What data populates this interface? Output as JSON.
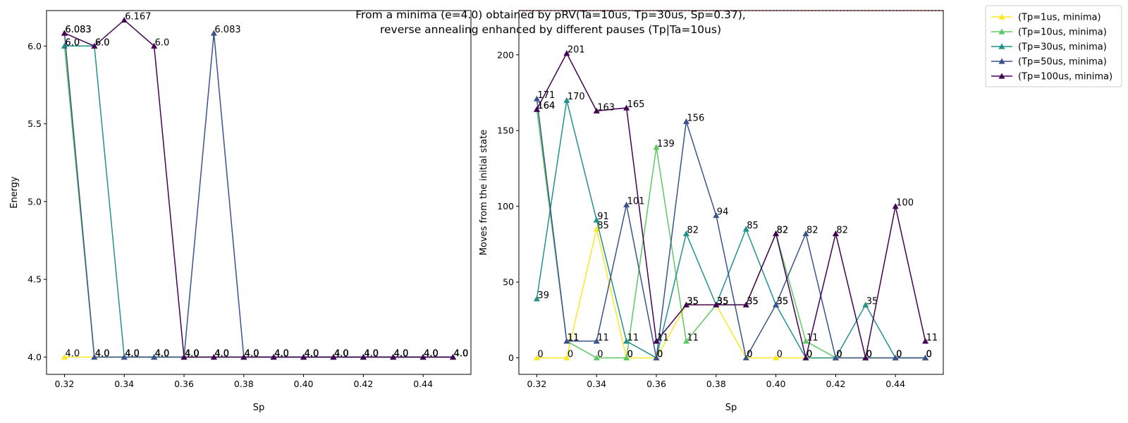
{
  "title_line1": "From a minima (e=4.0) obtained by pRV(Ta=10us, Tp=30us, Sp=0.37),",
  "title_line2": "reverse annealing enhanced by different pauses (Tp|Ta=10us)",
  "legend": {
    "placement": "outside-top-right",
    "entries": [
      {
        "label": "(Tp=1us, minima)",
        "color": "#fde725"
      },
      {
        "label": "(Tp=10us, minima)",
        "color": "#5ec962"
      },
      {
        "label": "(Tp=30us, minima)",
        "color": "#21918c"
      },
      {
        "label": "(Tp=50us, minima)",
        "color": "#3b528b"
      },
      {
        "label": "(Tp=100us, minima)",
        "color": "#440154"
      }
    ]
  },
  "chart_data": [
    {
      "type": "line",
      "xlabel": "Sp",
      "ylabel": "Energy",
      "xlim": [
        0.314,
        0.456
      ],
      "ylim": [
        3.889,
        6.228
      ],
      "xticks": [
        "0.32",
        "0.34",
        "0.36",
        "0.38",
        "0.40",
        "0.42",
        "0.44"
      ],
      "xtick_values": [
        0.32,
        0.34,
        0.36,
        0.38,
        0.4,
        0.42,
        0.44
      ],
      "yticks": [
        "4.0",
        "4.5",
        "5.0",
        "5.5",
        "6.0"
      ],
      "ytick_values": [
        4.0,
        4.5,
        5.0,
        5.5,
        6.0
      ],
      "x": [
        0.32,
        0.33,
        0.34,
        0.35,
        0.36,
        0.37,
        0.38,
        0.39,
        0.4,
        0.41,
        0.42,
        0.43,
        0.44,
        0.45
      ],
      "series": [
        {
          "color": "#fde725",
          "values": [
            4.0,
            4.0,
            4.0,
            4.0,
            4.0,
            4.0,
            4.0,
            4.0,
            4.0,
            4.0,
            4.0,
            4.0,
            4.0,
            4.0
          ],
          "labels": [
            "4.0",
            "4.0",
            "4.0",
            "4.0",
            "4.0",
            "4.0",
            "4.0",
            "4.0",
            "4.0",
            "4.0",
            "4.0",
            "4.0",
            "4.0",
            "4.0"
          ]
        },
        {
          "color": "#5ec962",
          "values": [
            6.0,
            4.0,
            4.0,
            4.0,
            4.0,
            4.0,
            4.0,
            4.0,
            4.0,
            4.0,
            4.0,
            4.0,
            4.0,
            4.0
          ],
          "labels": [
            "6.0",
            "4.0",
            "4.0",
            "4.0",
            "4.0",
            "4.0",
            "4.0",
            "4.0",
            "4.0",
            "4.0",
            "4.0",
            "4.0",
            "4.0",
            "4.0"
          ]
        },
        {
          "color": "#21918c",
          "values": [
            6.0,
            6.0,
            4.0,
            4.0,
            4.0,
            4.0,
            4.0,
            4.0,
            4.0,
            4.0,
            4.0,
            4.0,
            4.0,
            4.0
          ],
          "labels": [
            "6.0",
            "6.0",
            "4.0",
            "4.0",
            "4.0",
            "4.0",
            "4.0",
            "4.0",
            "4.0",
            "4.0",
            "4.0",
            "4.0",
            "4.0",
            "4.0"
          ]
        },
        {
          "color": "#3b528b",
          "values": [
            6.083,
            4.0,
            4.0,
            4.0,
            4.0,
            6.083,
            4.0,
            4.0,
            4.0,
            4.0,
            4.0,
            4.0,
            4.0,
            4.0
          ],
          "labels": [
            "6.083",
            "4.0",
            "4.0",
            "4.0",
            "4.0",
            "6.083",
            "4.0",
            "4.0",
            "4.0",
            "4.0",
            "4.0",
            "4.0",
            "4.0",
            "4.0"
          ]
        },
        {
          "color": "#440154",
          "values": [
            6.083,
            6.0,
            6.167,
            6.0,
            4.0,
            4.0,
            4.0,
            4.0,
            4.0,
            4.0,
            4.0,
            4.0,
            4.0,
            4.0
          ],
          "labels": [
            "6.083",
            "6.0",
            "6.167",
            "6.0",
            "4.0",
            "4.0",
            "4.0",
            "4.0",
            "4.0",
            "4.0",
            "4.0",
            "4.0",
            "4.0",
            "4.0"
          ]
        }
      ]
    },
    {
      "type": "line",
      "xlabel": "Sp",
      "ylabel": "Moves from the initial state",
      "xlim": [
        0.314,
        0.456
      ],
      "ylim": [
        -10.9,
        229.2
      ],
      "xticks": [
        "0.32",
        "0.34",
        "0.36",
        "0.38",
        "0.40",
        "0.42",
        "0.44"
      ],
      "xtick_values": [
        0.32,
        0.34,
        0.36,
        0.38,
        0.4,
        0.42,
        0.44
      ],
      "yticks": [
        "0",
        "50",
        "100",
        "150",
        "200"
      ],
      "ytick_values": [
        0,
        50,
        100,
        150,
        200
      ],
      "reference_line": {
        "y": 229.2,
        "color": "#ff0000",
        "style": "dotted"
      },
      "x": [
        0.32,
        0.33,
        0.34,
        0.35,
        0.36,
        0.37,
        0.38,
        0.39,
        0.4,
        0.41,
        0.42,
        0.43,
        0.44,
        0.45
      ],
      "series": [
        {
          "color": "#fde725",
          "values": [
            0,
            0,
            85,
            0,
            0,
            35,
            35,
            0,
            0,
            0,
            0,
            0,
            0,
            0
          ],
          "labels": [
            "0",
            "0",
            "85",
            "0",
            "0",
            "35",
            "35",
            "0",
            "0",
            "0",
            "0",
            "0",
            "0",
            "0"
          ]
        },
        {
          "color": "#5ec962",
          "values": [
            164,
            11,
            0,
            0,
            139,
            11,
            35,
            35,
            82,
            11,
            0,
            0,
            0,
            0
          ],
          "labels": [
            "164",
            "11",
            "0",
            "0",
            "139",
            "11",
            "35",
            "35",
            "82",
            "11",
            "0",
            "0",
            "0",
            "0"
          ]
        },
        {
          "color": "#21918c",
          "values": [
            39,
            170,
            91,
            11,
            0,
            82,
            35,
            85,
            35,
            0,
            0,
            35,
            0,
            0
          ],
          "labels": [
            "39",
            "170",
            "91",
            "11",
            "0",
            "82",
            "35",
            "85",
            "35",
            "0",
            "0",
            "35",
            "0",
            "0"
          ]
        },
        {
          "color": "#3b528b",
          "values": [
            171,
            11,
            11,
            101,
            0,
            156,
            94,
            0,
            35,
            82,
            0,
            0,
            0,
            0
          ],
          "labels": [
            "171",
            "11",
            "11",
            "101",
            "0",
            "156",
            "94",
            "0",
            "35",
            "82",
            "0",
            "0",
            "0",
            "0"
          ]
        },
        {
          "color": "#440154",
          "values": [
            164,
            201,
            163,
            165,
            11,
            35,
            35,
            35,
            82,
            0,
            82,
            0,
            100,
            11
          ],
          "labels": [
            "164",
            "201",
            "163",
            "165",
            "11",
            "35",
            "35",
            "35",
            "82",
            "0",
            "82",
            "0",
            "100",
            "11"
          ]
        }
      ]
    }
  ]
}
